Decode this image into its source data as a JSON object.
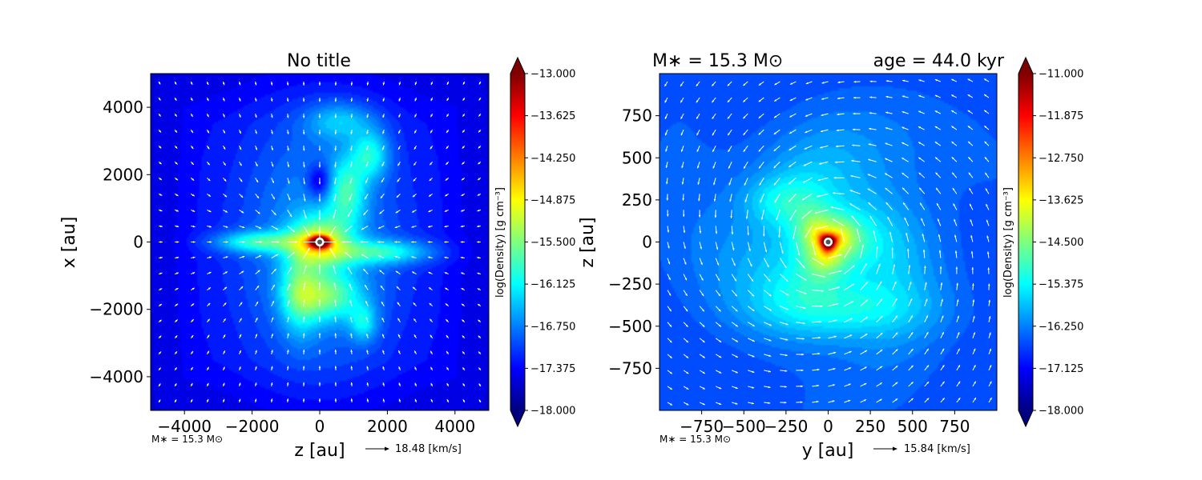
{
  "colors": {
    "figure_background": "#ffffff",
    "axis": "#000000",
    "arrows": "#ffffff",
    "colormap": "jet",
    "colormap_stops": [
      "#00007f",
      "#0000ff",
      "#007fff",
      "#00ffff",
      "#7fff7f",
      "#ffff00",
      "#ff7f00",
      "#ff0000",
      "#7f0000"
    ]
  },
  "chart_data": [
    {
      "type": "heatmap",
      "title": "No title",
      "xlabel": "z [au]",
      "ylabel": "x [au]",
      "xlim": [
        -5000,
        5000
      ],
      "ylim": [
        -5000,
        5000
      ],
      "xticks": [
        -4000,
        -2000,
        0,
        2000,
        4000
      ],
      "xtick_labels": [
        "−4000",
        "−2000",
        "0",
        "2000",
        "4000"
      ],
      "yticks": [
        4000,
        2000,
        0,
        -2000,
        -4000
      ],
      "ytick_labels": [
        "4000",
        "2000",
        "0",
        "−2000",
        "−4000"
      ],
      "grid": false,
      "colorbar": {
        "label": "log(Density) [g cm⁻³]",
        "range": [
          -18.0,
          -13.0
        ],
        "ticks": [
          -13.0,
          -13.625,
          -14.25,
          -14.875,
          -15.5,
          -16.125,
          -16.75,
          -17.375,
          -18.0
        ],
        "tick_labels": [
          "−13.000",
          "−13.625",
          "−14.250",
          "−14.875",
          "−15.500",
          "−16.125",
          "−16.750",
          "−17.375",
          "−18.000"
        ],
        "extend": "both"
      },
      "annotations": {
        "mass_label": "M∗ = 15.3 M⊙",
        "arrow_key_label": "18.48 [km/s]"
      },
      "sink": {
        "x": 0,
        "y": 0
      },
      "density_features": {
        "background": -17.4,
        "peak": -13.0,
        "blobs": [
          {
            "x": 0,
            "y": 0,
            "sx": 180,
            "sy": 110,
            "amp": 4.4
          },
          {
            "x": 0,
            "y": 0,
            "sx": 600,
            "sy": 500,
            "amp": 1.6
          },
          {
            "x": 0,
            "y": 0,
            "sx": 1800,
            "sy": 3000,
            "amp": 0.8
          },
          {
            "x": -1800,
            "y": 0,
            "sx": 900,
            "sy": 220,
            "amp": 1.2
          },
          {
            "x": 1800,
            "y": -300,
            "sx": 1100,
            "sy": 250,
            "amp": 1.1
          },
          {
            "x": 800,
            "y": 1500,
            "sx": 400,
            "sy": 700,
            "amp": 1.0
          },
          {
            "x": 1500,
            "y": 2600,
            "sx": 400,
            "sy": 500,
            "amp": 1.0
          },
          {
            "x": 200,
            "y": -1600,
            "sx": 700,
            "sy": 500,
            "amp": 1.2
          },
          {
            "x": -600,
            "y": -1500,
            "sx": 400,
            "sy": 900,
            "amp": 0.9
          },
          {
            "x": 1300,
            "y": -2400,
            "sx": 300,
            "sy": 400,
            "amp": 0.8
          },
          {
            "x": 600,
            "y": 3600,
            "sx": 700,
            "sy": 400,
            "amp": 0.7
          },
          {
            "x": 0,
            "y": 1800,
            "sx": 250,
            "sy": 350,
            "amp": -0.8
          }
        ]
      },
      "velocity_field": {
        "type": "infall",
        "scale": 1.0
      }
    },
    {
      "type": "heatmap",
      "title": "M∗ = 15.3 M⊙",
      "title_right": "age = 44.0 kyr",
      "xlabel": "y [au]",
      "ylabel": "z [au]",
      "xlim": [
        -1000,
        1000
      ],
      "ylim": [
        -1000,
        1000
      ],
      "xticks": [
        -750,
        -500,
        -250,
        0,
        250,
        500,
        750
      ],
      "xtick_labels": [
        "−750",
        "−500",
        "−250",
        "0",
        "250",
        "500",
        "750"
      ],
      "yticks": [
        750,
        500,
        250,
        0,
        -250,
        -500,
        -750
      ],
      "ytick_labels": [
        "750",
        "500",
        "250",
        "0",
        "−250",
        "−500",
        "−750"
      ],
      "grid": false,
      "colorbar": {
        "label": "log(Density) [g cm⁻³]",
        "range": [
          -18.0,
          -11.0
        ],
        "ticks": [
          -11.0,
          -11.875,
          -12.75,
          -13.625,
          -14.5,
          -15.375,
          -16.25,
          -17.125,
          -18.0
        ],
        "tick_labels": [
          "−11.000",
          "−11.875",
          "−12.750",
          "−13.625",
          "−14.500",
          "−15.375",
          "−16.250",
          "−17.125",
          "−18.000"
        ],
        "extend": "both"
      },
      "annotations": {
        "mass_label": "M∗ = 15.3 M⊙",
        "arrow_key_label": "15.84 [km/s]"
      },
      "sink": {
        "x": 0,
        "y": 0
      },
      "density_features": {
        "background": -16.6,
        "peak": -11.0,
        "blobs": [
          {
            "x": 0,
            "y": 0,
            "sx": 30,
            "sy": 30,
            "amp": 4.0
          },
          {
            "x": 0,
            "y": 0,
            "sx": 110,
            "sy": 110,
            "amp": 2.2
          },
          {
            "x": 0,
            "y": 0,
            "sx": 400,
            "sy": 400,
            "amp": 1.3
          },
          {
            "x": 100,
            "y": -400,
            "sx": 350,
            "sy": 120,
            "amp": 0.8
          },
          {
            "x": -300,
            "y": 250,
            "sx": 150,
            "sy": 100,
            "amp": 0.6
          }
        ]
      },
      "velocity_field": {
        "type": "rotation",
        "scale": 1.0
      }
    }
  ]
}
